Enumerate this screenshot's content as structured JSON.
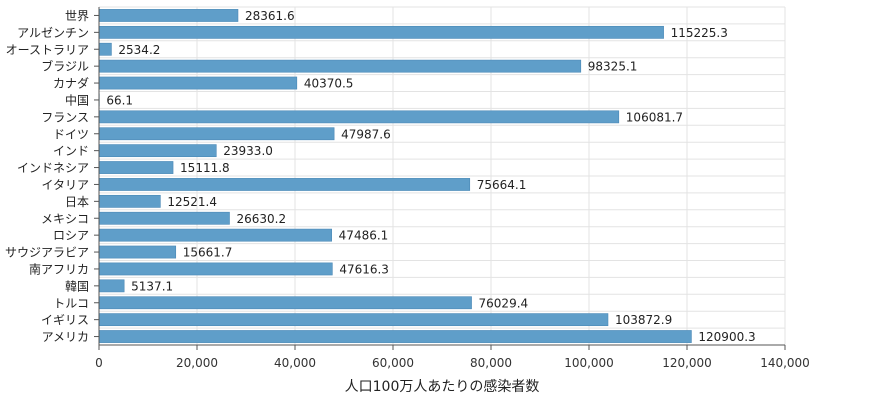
{
  "chart_data": {
    "type": "bar",
    "orientation": "horizontal",
    "categories": [
      "世界",
      "アルゼンチン",
      "オーストラリア",
      "ブラジル",
      "カナダ",
      "中国",
      "フランス",
      "ドイツ",
      "インド",
      "インドネシア",
      "イタリア",
      "日本",
      "メキシコ",
      "ロシア",
      "サウジアラビア",
      "南アフリカ",
      "韓国",
      "トルコ",
      "イギリス",
      "アメリカ"
    ],
    "values": [
      28361.6,
      115225.3,
      2534.2,
      98325.1,
      40370.5,
      66.1,
      106081.7,
      47987.6,
      23933.0,
      15111.8,
      75664.1,
      12521.4,
      26630.2,
      47486.1,
      15661.7,
      47616.3,
      5137.1,
      76029.4,
      103872.9,
      120900.3
    ],
    "value_labels": [
      "28361.6",
      "115225.3",
      "2534.2",
      "98325.1",
      "40370.5",
      "66.1",
      "106081.7",
      "47987.6",
      "23933.0",
      "15111.8",
      "75664.1",
      "12521.4",
      "26630.2",
      "47486.1",
      "15661.7",
      "47616.3",
      "5137.1",
      "76029.4",
      "103872.9",
      "120900.3"
    ],
    "xlabel": "人口100万人あたりの感染者数",
    "ylabel": "",
    "xlim": [
      0,
      140000
    ],
    "xticks": [
      0,
      20000,
      40000,
      60000,
      80000,
      100000,
      120000,
      140000
    ],
    "xtick_labels": [
      "0",
      "20,000",
      "40,000",
      "60,000",
      "80,000",
      "100,000",
      "120,000",
      "140,000"
    ],
    "grid": true,
    "legend": "none",
    "bar_color": "#5f9ec9",
    "bar_edge_color": "#4a88b6",
    "grid_color": "#e3e3e3"
  }
}
